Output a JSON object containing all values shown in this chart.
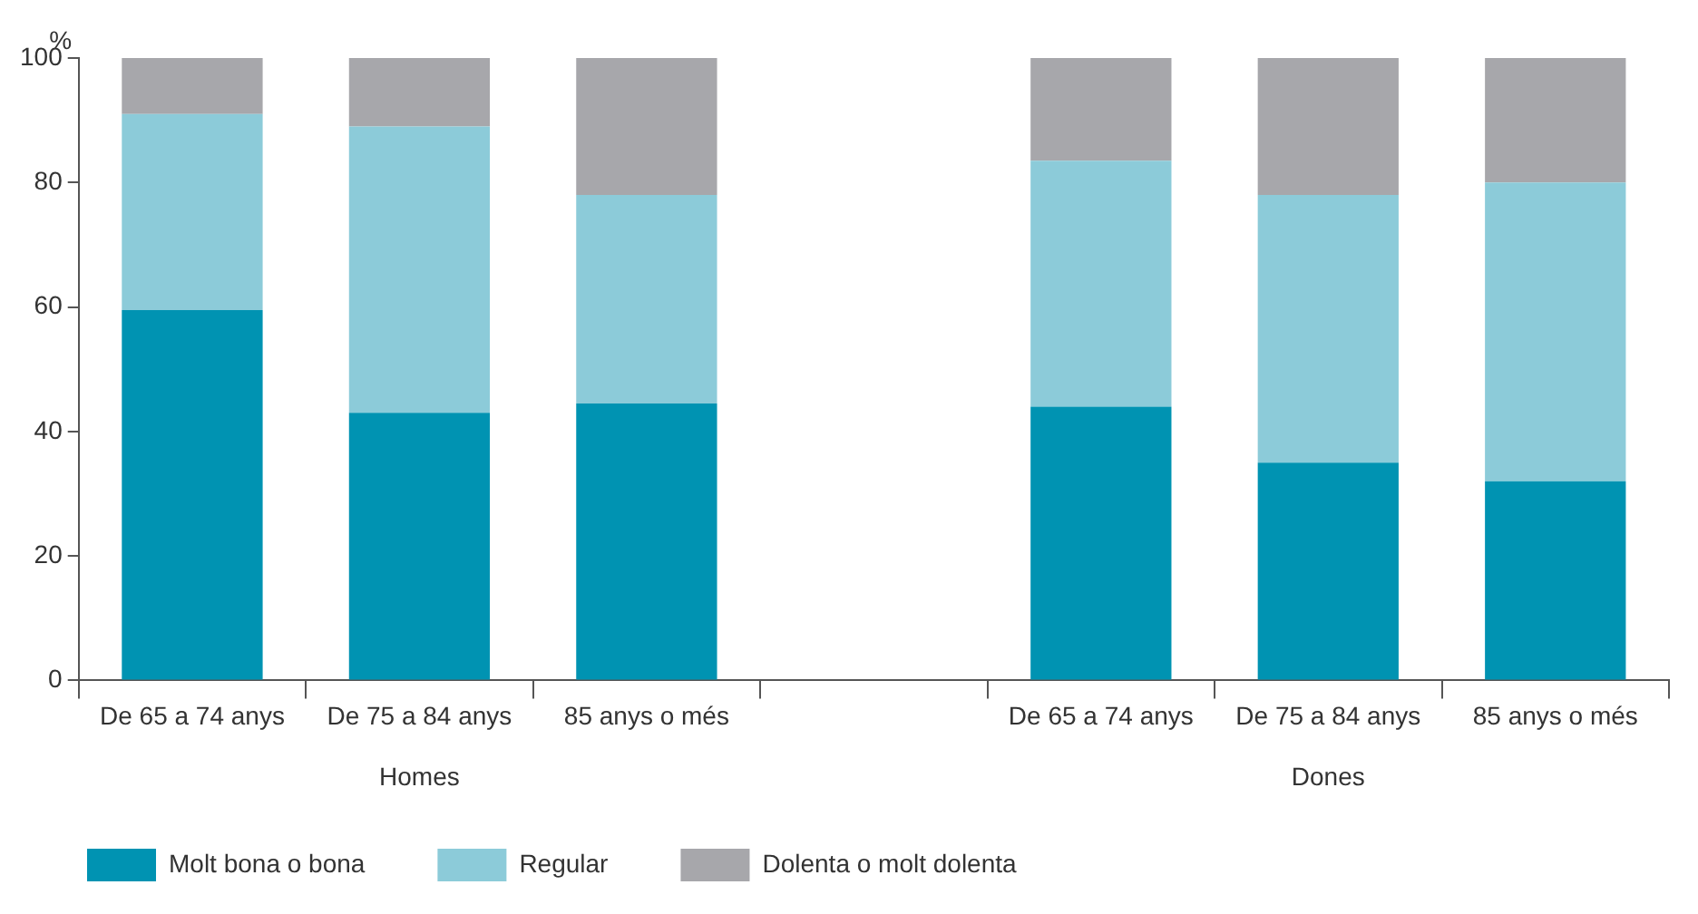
{
  "chart_data": {
    "type": "bar",
    "stacked": true,
    "ylabel": "%",
    "categories": [
      "De 65 a 74 anys",
      "De 75 a 84 anys",
      "85 anys o més",
      null,
      "De 65 a 74 anys",
      "De 75 a 84 anys",
      "85 anys o més"
    ],
    "series": [
      {
        "name": "Molt bona o bona",
        "color": "#0093b2",
        "values": [
          59.5,
          43,
          44.5,
          null,
          44,
          35,
          32
        ]
      },
      {
        "name": "Regular",
        "color": "#8ccbd9",
        "values": [
          31.5,
          46,
          33.5,
          null,
          39.5,
          43,
          48
        ]
      },
      {
        "name": "Dolenta o molt dolenta",
        "color": "#a7a7ab",
        "values": [
          9,
          11,
          22,
          null,
          16.5,
          22,
          20
        ]
      }
    ],
    "ylim": [
      0,
      100
    ],
    "yticks": [
      0,
      20,
      40,
      60,
      80,
      100
    ],
    "grid": false,
    "legend": "bottom left",
    "annotations": [
      "Homes",
      "Dones"
    ]
  }
}
